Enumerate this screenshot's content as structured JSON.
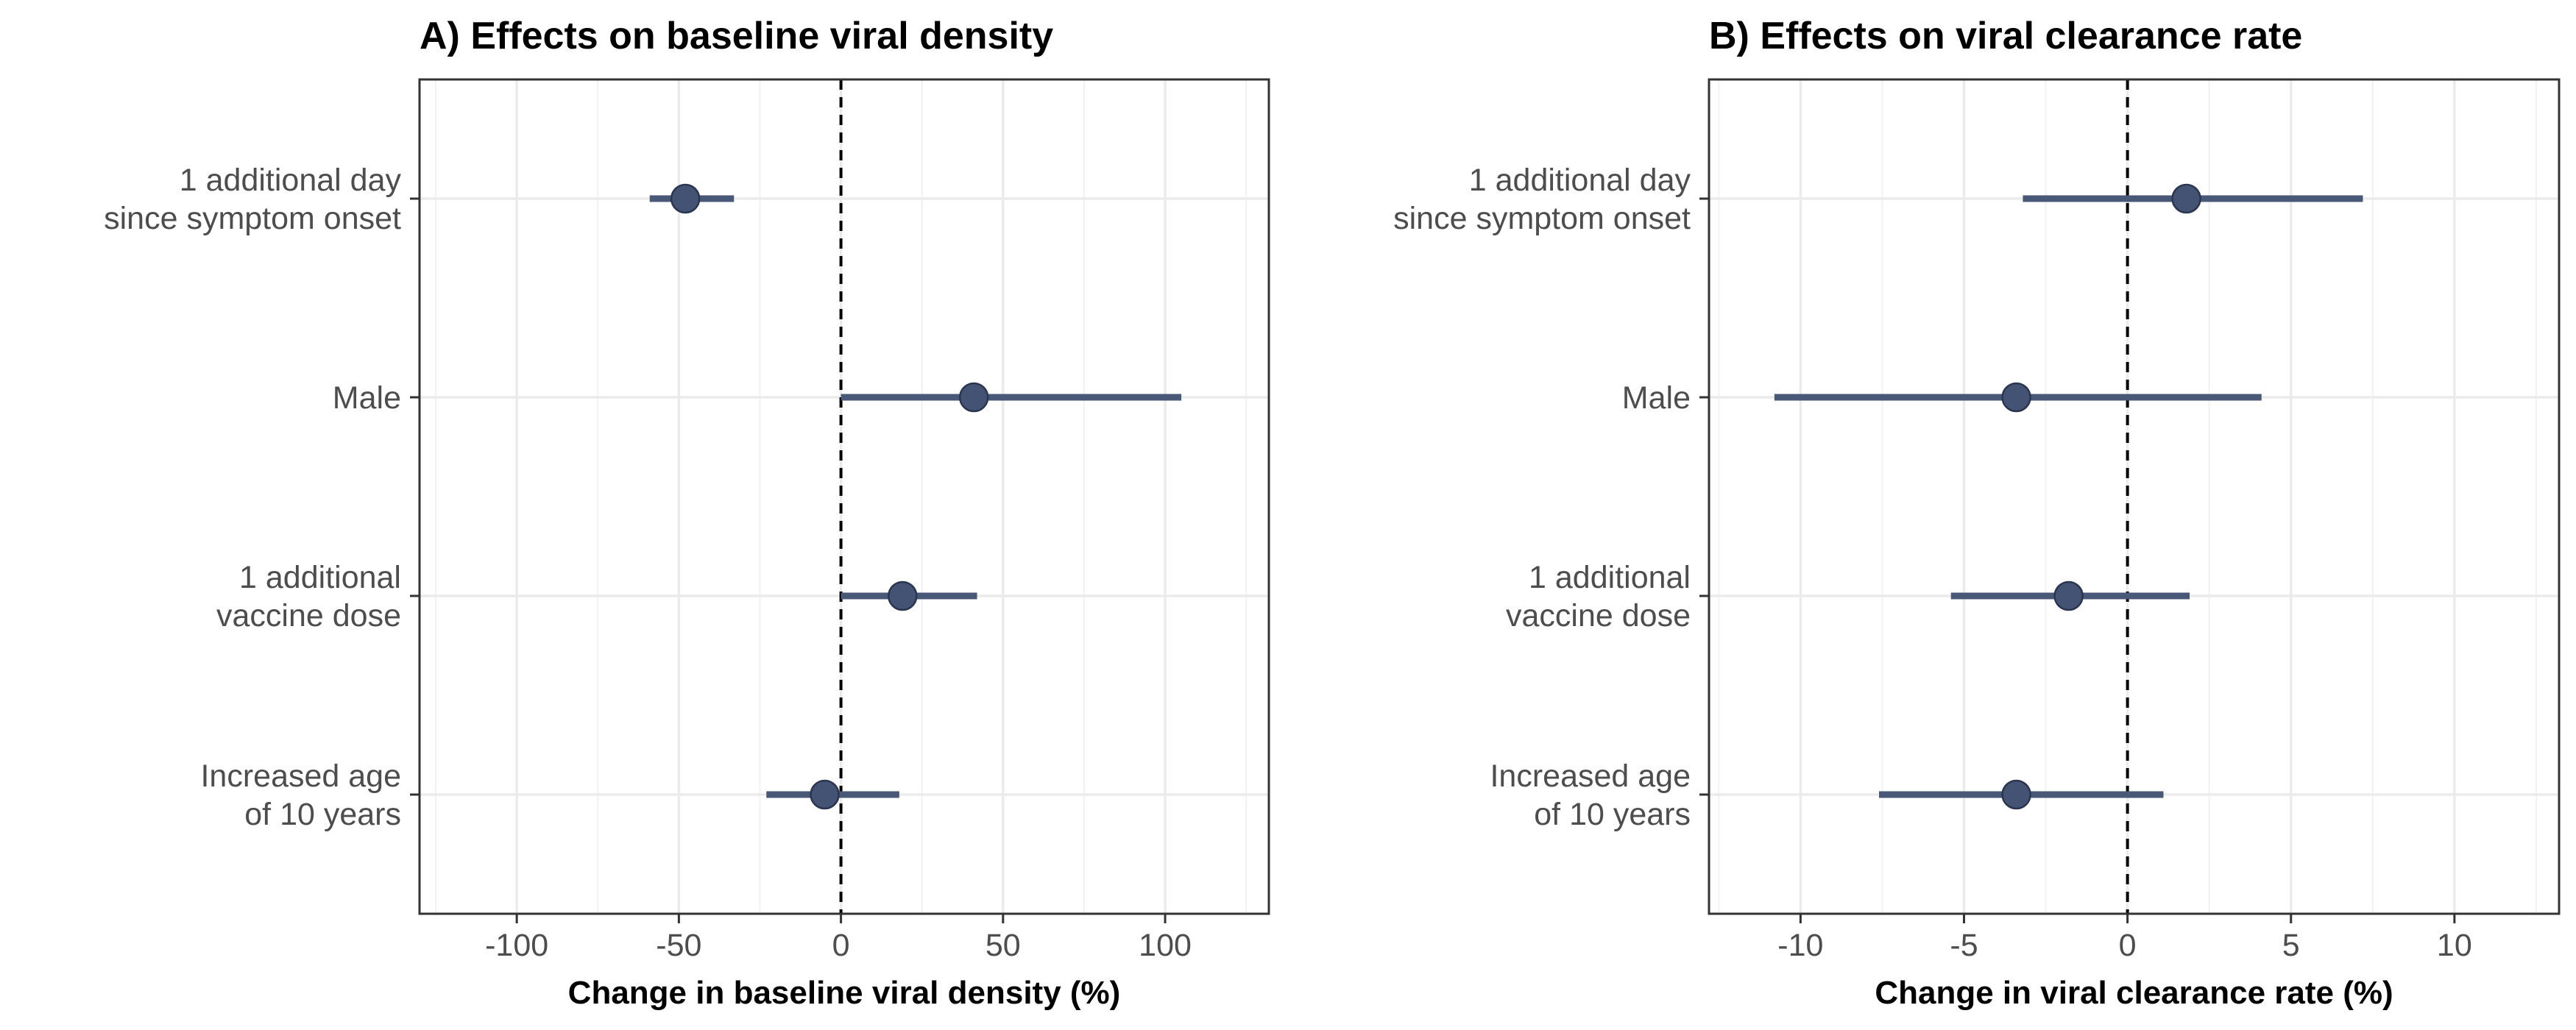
{
  "chart_data": [
    {
      "type": "forest",
      "title": "A) Effects on baseline viral density",
      "xlabel": "Change in baseline viral density (%)",
      "xlim": [
        -130,
        132
      ],
      "xticks": [
        -100,
        -50,
        0,
        50,
        100
      ],
      "xtick_labels": [
        "-100",
        "-50",
        "0",
        "50",
        "100"
      ],
      "reference_line": 0,
      "grid": true,
      "categories": [
        [
          "1 additional day",
          "since symptom onset"
        ],
        [
          "Male"
        ],
        [
          "1 additional",
          "vaccine dose"
        ],
        [
          "Increased age",
          "of 10 years"
        ]
      ],
      "estimates": [
        {
          "estimate": -48,
          "lower": -59,
          "upper": -33
        },
        {
          "estimate": 41,
          "lower": 0,
          "upper": 105
        },
        {
          "estimate": 19,
          "lower": 0,
          "upper": 42
        },
        {
          "estimate": -5,
          "lower": -23,
          "upper": 18
        }
      ]
    },
    {
      "type": "forest",
      "title": "B) Effects on viral clearance rate",
      "xlabel": "Change in viral clearance rate (%)",
      "xlim": [
        -12.8,
        13.2
      ],
      "xticks": [
        -10,
        -5,
        0,
        5,
        10
      ],
      "xtick_labels": [
        "-10",
        "-5",
        "0",
        "5",
        "10"
      ],
      "reference_line": 0,
      "grid": true,
      "categories": [
        [
          "1 additional day",
          "since symptom onset"
        ],
        [
          "Male"
        ],
        [
          "1 additional",
          "vaccine dose"
        ],
        [
          "Increased age",
          "of 10 years"
        ]
      ],
      "estimates": [
        {
          "estimate": 1.8,
          "lower": -3.2,
          "upper": 7.2
        },
        {
          "estimate": -3.4,
          "lower": -10.8,
          "upper": 4.1
        },
        {
          "estimate": -1.8,
          "lower": -5.4,
          "upper": 1.9
        },
        {
          "estimate": -3.4,
          "lower": -7.6,
          "upper": 1.1
        }
      ]
    }
  ],
  "colors": {
    "point": "#445373",
    "interval": "#4a5877",
    "grid_major": "#ebebeb",
    "grid_minor": "#f2f2f2",
    "frame": "#333333",
    "reference": "#000000"
  }
}
